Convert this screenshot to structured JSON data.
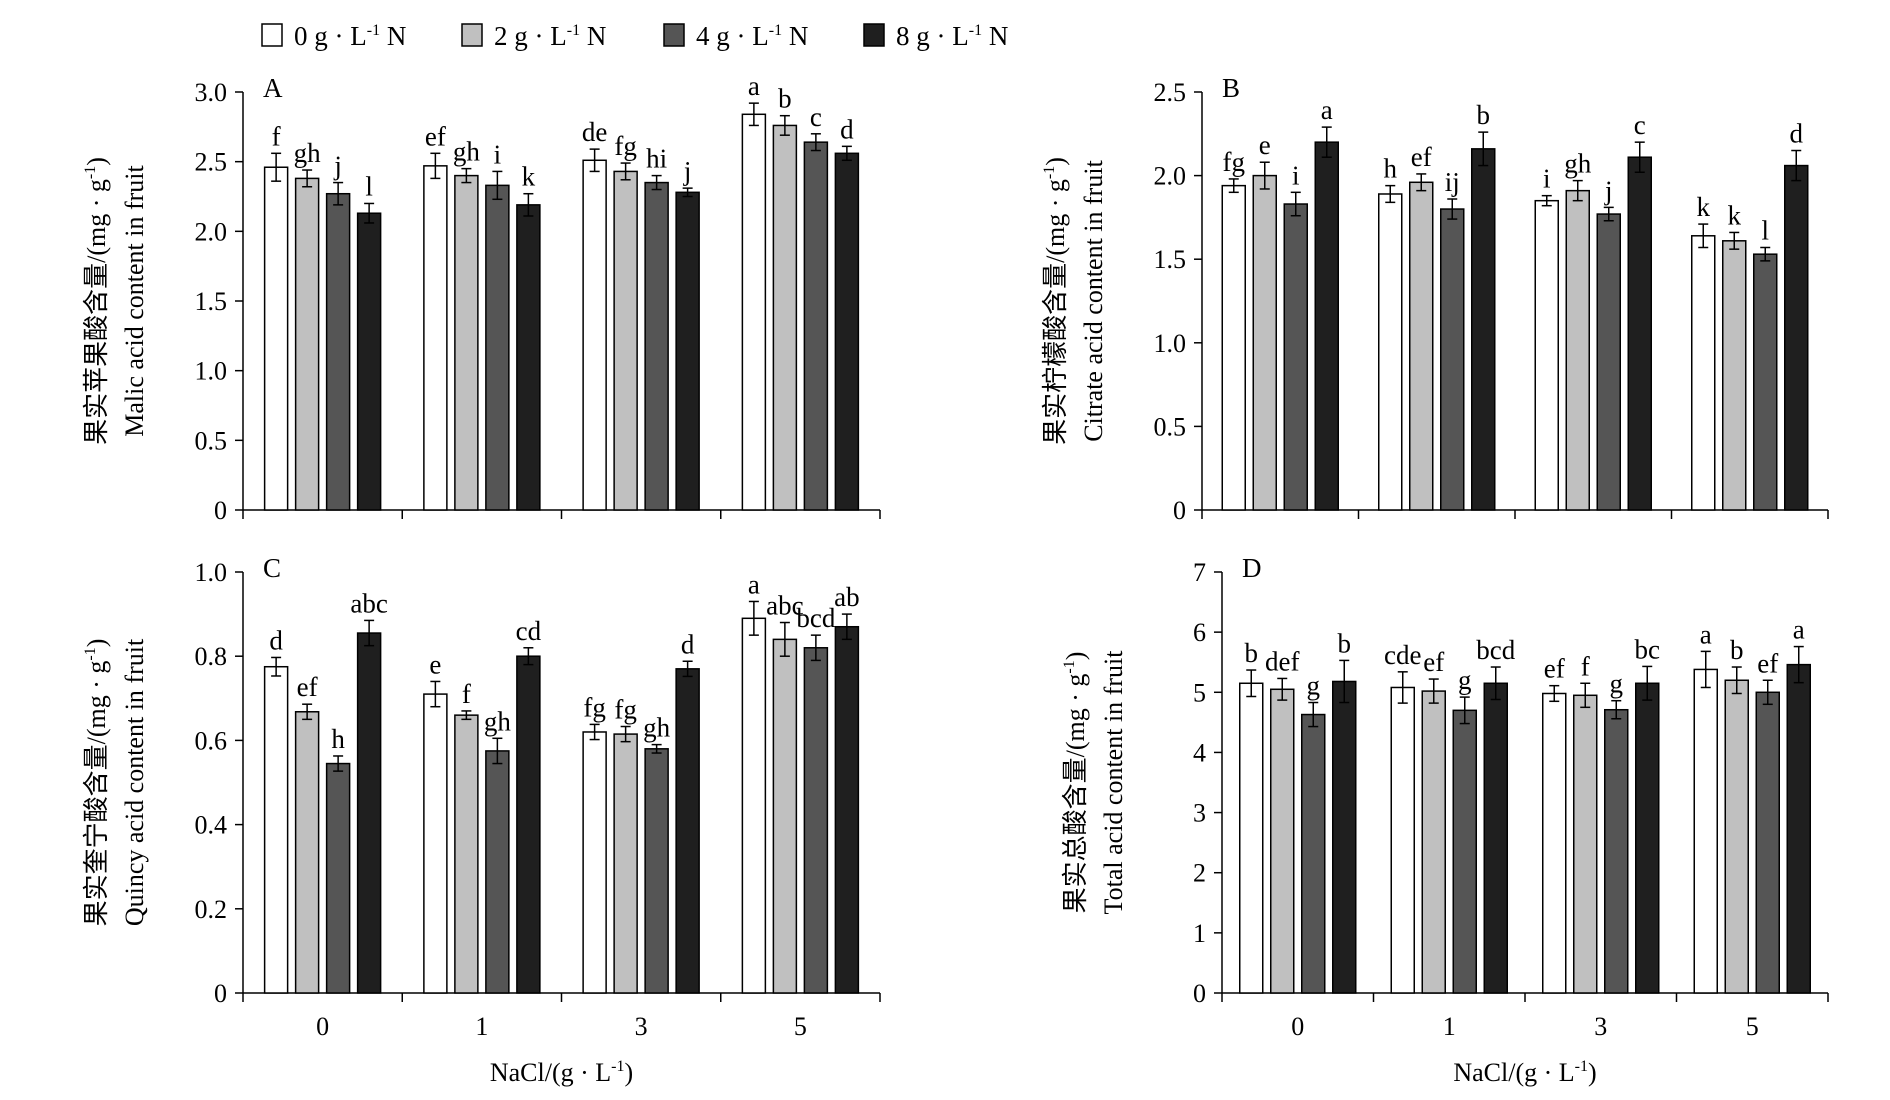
{
  "legend": {
    "items": [
      {
        "label": "0 g · L",
        "sup": "-1",
        "suffix": " N",
        "color": "#ffffff"
      },
      {
        "label": "2 g · L",
        "sup": "-1",
        "suffix": " N",
        "color": "#c0c0c0"
      },
      {
        "label": "4 g · L",
        "sup": "-1",
        "suffix": " N",
        "color": "#555555"
      },
      {
        "label": "8 g · L",
        "sup": "-1",
        "suffix": " N",
        "color": "#1f1f1f"
      }
    ]
  },
  "xlabel": {
    "main": "NaCl/(g · L",
    "sup": "-1",
    "end": ")"
  },
  "chart_data": [
    {
      "type": "bar",
      "panel": "A",
      "ylabel_cn": "果实苹果酸含量/(mg · g",
      "ylabel_sup": "-1",
      "ylabel_end": ")",
      "ylabel_en": "Malic acid content in fruit",
      "ylim": [
        0,
        3.0
      ],
      "yticks": [
        "0",
        "0.5",
        "1.0",
        "1.5",
        "2.0",
        "2.5",
        "3.0"
      ],
      "categories": [
        "0",
        "1",
        "3",
        "5"
      ],
      "series": [
        {
          "name": "0 g·L-1 N",
          "values": [
            2.46,
            2.47,
            2.51,
            2.84
          ],
          "errors": [
            0.1,
            0.09,
            0.08,
            0.08
          ],
          "letters": [
            "f",
            "ef",
            "de",
            "a"
          ]
        },
        {
          "name": "2 g·L-1 N",
          "values": [
            2.38,
            2.4,
            2.43,
            2.76
          ],
          "errors": [
            0.06,
            0.05,
            0.06,
            0.07
          ],
          "letters": [
            "gh",
            "gh",
            "fg",
            "b"
          ]
        },
        {
          "name": "4 g·L-1 N",
          "values": [
            2.27,
            2.33,
            2.35,
            2.64
          ],
          "errors": [
            0.08,
            0.1,
            0.05,
            0.06
          ],
          "letters": [
            "j",
            "i",
            "hi",
            "c"
          ]
        },
        {
          "name": "8 g·L-1 N",
          "values": [
            2.13,
            2.19,
            2.28,
            2.56
          ],
          "errors": [
            0.07,
            0.08,
            0.03,
            0.05
          ],
          "letters": [
            "l",
            "k",
            "j",
            "d"
          ]
        }
      ]
    },
    {
      "type": "bar",
      "panel": "B",
      "ylabel_cn": "果实柠檬酸含量/(mg · g",
      "ylabel_sup": "-1",
      "ylabel_end": ")",
      "ylabel_en": "Citrate acid content in fruit",
      "ylim": [
        0,
        2.5
      ],
      "yticks": [
        "0",
        "0.5",
        "1.0",
        "1.5",
        "2.0",
        "2.5"
      ],
      "categories": [
        "0",
        "1",
        "3",
        "5"
      ],
      "series": [
        {
          "name": "0 g·L-1 N",
          "values": [
            1.94,
            1.89,
            1.85,
            1.64
          ],
          "errors": [
            0.04,
            0.05,
            0.03,
            0.07
          ],
          "letters": [
            "fg",
            "h",
            "i",
            "k"
          ]
        },
        {
          "name": "2 g·L-1 N",
          "values": [
            2.0,
            1.96,
            1.91,
            1.61
          ],
          "errors": [
            0.08,
            0.05,
            0.06,
            0.05
          ],
          "letters": [
            "e",
            "ef",
            "gh",
            "k"
          ]
        },
        {
          "name": "4 g·L-1 N",
          "values": [
            1.83,
            1.8,
            1.77,
            1.53
          ],
          "errors": [
            0.07,
            0.06,
            0.04,
            0.04
          ],
          "letters": [
            "i",
            "ij",
            "j",
            "l"
          ]
        },
        {
          "name": "8 g·L-1 N",
          "values": [
            2.2,
            2.16,
            2.11,
            2.06
          ],
          "errors": [
            0.09,
            0.1,
            0.09,
            0.09
          ],
          "letters": [
            "a",
            "b",
            "c",
            "d"
          ]
        }
      ]
    },
    {
      "type": "bar",
      "panel": "C",
      "ylabel_cn": "果实奎宁酸含量/(mg · g",
      "ylabel_sup": "-1",
      "ylabel_end": ")",
      "ylabel_en": "Quincy acid content in fruit",
      "ylim": [
        0,
        1.0
      ],
      "yticks": [
        "0",
        "0.2",
        "0.4",
        "0.6",
        "0.8",
        "1.0"
      ],
      "categories": [
        "0",
        "1",
        "3",
        "5"
      ],
      "series": [
        {
          "name": "0 g·L-1 N",
          "values": [
            0.775,
            0.71,
            0.62,
            0.89
          ],
          "errors": [
            0.022,
            0.03,
            0.018,
            0.04
          ],
          "letters": [
            "d",
            "e",
            "fg",
            "a"
          ]
        },
        {
          "name": "2 g·L-1 N",
          "values": [
            0.668,
            0.66,
            0.615,
            0.84
          ],
          "errors": [
            0.018,
            0.01,
            0.018,
            0.04
          ],
          "letters": [
            "ef",
            "f",
            "fg",
            "abc"
          ]
        },
        {
          "name": "4 g·L-1 N",
          "values": [
            0.545,
            0.575,
            0.58,
            0.82
          ],
          "errors": [
            0.018,
            0.03,
            0.01,
            0.03
          ],
          "letters": [
            "h",
            "gh",
            "gh",
            "bcd"
          ]
        },
        {
          "name": "8 g·L-1 N",
          "values": [
            0.855,
            0.8,
            0.77,
            0.87
          ],
          "errors": [
            0.03,
            0.02,
            0.018,
            0.03
          ],
          "letters": [
            "abc",
            "cd",
            "d",
            "ab"
          ]
        }
      ]
    },
    {
      "type": "bar",
      "panel": "D",
      "ylabel_cn": "果实总酸含量/(mg · g",
      "ylabel_sup": "-1",
      "ylabel_end": ")",
      "ylabel_en": "Total acid content in fruit",
      "ylim": [
        0,
        7
      ],
      "yticks": [
        "0",
        "1",
        "2",
        "3",
        "4",
        "5",
        "6",
        "7"
      ],
      "categories": [
        "0",
        "1",
        "3",
        "5"
      ],
      "series": [
        {
          "name": "0 g·L-1 N",
          "values": [
            5.15,
            5.08,
            4.98,
            5.38
          ],
          "errors": [
            0.22,
            0.26,
            0.13,
            0.3
          ],
          "letters": [
            "b",
            "cde",
            "ef",
            "a"
          ]
        },
        {
          "name": "2 g·L-1 N",
          "values": [
            5.05,
            5.02,
            4.95,
            5.2
          ],
          "errors": [
            0.18,
            0.2,
            0.2,
            0.22
          ],
          "letters": [
            "def",
            "ef",
            "f",
            "b"
          ]
        },
        {
          "name": "4 g·L-1 N",
          "values": [
            4.63,
            4.7,
            4.71,
            5.0
          ],
          "errors": [
            0.2,
            0.22,
            0.15,
            0.2
          ],
          "letters": [
            "g",
            "g",
            "g",
            "ef"
          ]
        },
        {
          "name": "8 g·L-1 N",
          "values": [
            5.18,
            5.15,
            5.15,
            5.46
          ],
          "errors": [
            0.35,
            0.27,
            0.28,
            0.3
          ],
          "letters": [
            "b",
            "bcd",
            "bc",
            "a"
          ]
        }
      ]
    }
  ]
}
